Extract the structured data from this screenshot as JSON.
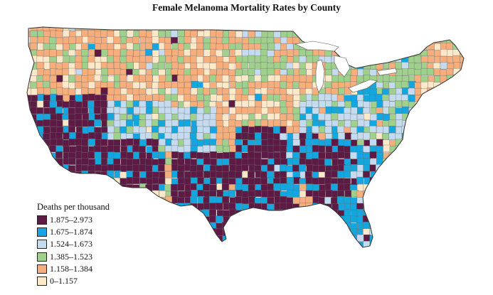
{
  "title": "Female Melanoma Mortality Rates by County",
  "legend": {
    "title": "Deaths per thousand",
    "items": [
      {
        "label": "1.875–2.973",
        "color": "#5c1a44"
      },
      {
        "label": "1.675–1.874",
        "color": "#14a6df"
      },
      {
        "label": "1.524–1.673",
        "color": "#c5dcf0"
      },
      {
        "label": "1.385–1.523",
        "color": "#9fd08c"
      },
      {
        "label": "1.158–1.384",
        "color": "#f6ae7c"
      },
      {
        "label": "0–1.157",
        "color": "#fde8c9"
      }
    ]
  },
  "map": {
    "region": "Contiguous United States",
    "unit": "county",
    "regional_classes": [
      {
        "region": "pacific-northwest",
        "class": 4
      },
      {
        "region": "california-coast",
        "class": 0
      },
      {
        "region": "great-basin",
        "class": 0
      },
      {
        "region": "northern-rockies",
        "class": 4
      },
      {
        "region": "southern-rockies",
        "class": 2
      },
      {
        "region": "southwest",
        "class": 0
      },
      {
        "region": "northern-plains",
        "class": 4
      },
      {
        "region": "southern-plains",
        "class": 2
      },
      {
        "region": "texas-south",
        "class": 0
      },
      {
        "region": "upper-midwest",
        "class": 3
      },
      {
        "region": "lower-midwest",
        "class": 4
      },
      {
        "region": "ozarks",
        "class": 0
      },
      {
        "region": "mississippi-valley",
        "class": 0
      },
      {
        "region": "appalachia",
        "class": 2
      },
      {
        "region": "southeast",
        "class": 1
      },
      {
        "region": "georgia",
        "class": 0
      },
      {
        "region": "florida",
        "class": 1
      },
      {
        "region": "mid-atlantic",
        "class": 2
      },
      {
        "region": "northeast",
        "class": 3
      },
      {
        "region": "maine",
        "class": 4
      }
    ]
  }
}
